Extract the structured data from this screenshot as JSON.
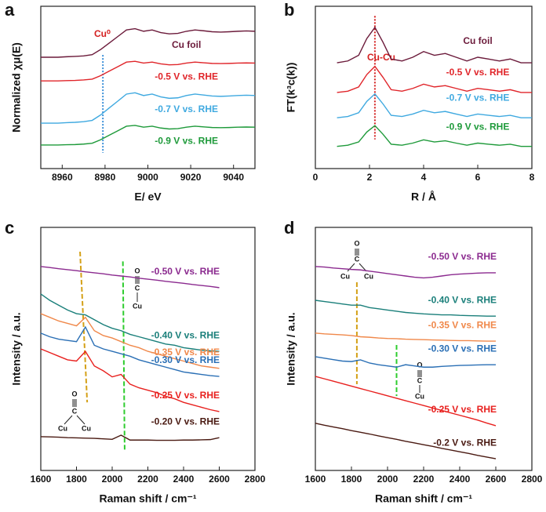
{
  "chart_data": [
    {
      "type": "line",
      "panel": "a",
      "xlabel": "E/ eV",
      "ylabel": "Normalized χμ(E)",
      "x": [
        8950,
        8954,
        8958,
        8962,
        8966,
        8970,
        8974,
        8978,
        8982,
        8986,
        8990,
        8994,
        8998,
        9002,
        9006,
        9010,
        9014,
        9018,
        9022,
        9026,
        9030,
        9034,
        9038,
        9042,
        9046,
        9050
      ],
      "xlim": [
        8950,
        9050
      ],
      "xticks": [
        8960,
        8980,
        9000,
        9020,
        9040
      ],
      "ylim": [
        0,
        10
      ],
      "series": [
        {
          "name": "Cu foil",
          "color": "#6b1a3a",
          "values": [
            6.86,
            6.86,
            6.86,
            6.89,
            6.91,
            6.94,
            7.02,
            7.34,
            7.74,
            8.14,
            8.54,
            8.62,
            8.46,
            8.54,
            8.38,
            8.3,
            8.33,
            8.46,
            8.54,
            8.49,
            8.43,
            8.41,
            8.43,
            8.46,
            8.48,
            8.46
          ]
        },
        {
          "name": "-0.5 V vs. RHE",
          "color": "#e0252a",
          "values": [
            5.4,
            5.4,
            5.4,
            5.42,
            5.43,
            5.46,
            5.51,
            5.73,
            6.01,
            6.28,
            6.56,
            6.61,
            6.5,
            6.56,
            6.45,
            6.39,
            6.41,
            6.5,
            6.56,
            6.52,
            6.48,
            6.47,
            6.48,
            6.5,
            6.51,
            6.5
          ]
        },
        {
          "name": "-0.7 V vs. RHE",
          "color": "#3fa9e0",
          "values": [
            2.8,
            2.8,
            2.8,
            2.83,
            2.85,
            2.89,
            2.97,
            3.31,
            3.74,
            4.16,
            4.59,
            4.67,
            4.5,
            4.59,
            4.42,
            4.33,
            4.36,
            4.5,
            4.59,
            4.53,
            4.47,
            4.45,
            4.47,
            4.5,
            4.52,
            4.5
          ]
        },
        {
          "name": "-0.9 V vs. RHE",
          "color": "#1e9a3a",
          "values": [
            1.45,
            1.45,
            1.45,
            1.47,
            1.48,
            1.51,
            1.56,
            1.78,
            2.06,
            2.33,
            2.61,
            2.66,
            2.55,
            2.61,
            2.5,
            2.44,
            2.46,
            2.55,
            2.61,
            2.57,
            2.53,
            2.52,
            2.53,
            2.55,
            2.56,
            2.55
          ]
        }
      ],
      "reference_lines": [
        {
          "x": [
            8979,
            8979
          ],
          "y": [
            7.0,
            0.97
          ],
          "color": "#3a8fd8",
          "style": "dotted"
        }
      ],
      "annotations": [
        "Cu⁰"
      ]
    },
    {
      "type": "line",
      "panel": "b",
      "xlabel": "R / Å",
      "ylabel": "FT(k³c(k))",
      "x": [
        0.8,
        1.2,
        1.6,
        1.9,
        2.2,
        2.5,
        2.8,
        3.2,
        3.6,
        4.0,
        4.4,
        4.8,
        5.2,
        5.6,
        6.0,
        6.4,
        6.8,
        7.2,
        7.6,
        8.0
      ],
      "xlim": [
        0,
        8
      ],
      "xticks": [
        0,
        2,
        4,
        6,
        8
      ],
      "ylim": [
        0,
        10
      ],
      "series": [
        {
          "name": "Cu foil",
          "color": "#6b1a3a",
          "values": [
            6.52,
            6.63,
            6.98,
            8.01,
            8.7,
            7.78,
            6.75,
            6.63,
            6.86,
            7.21,
            6.98,
            7.09,
            6.86,
            6.63,
            6.86,
            6.75,
            6.63,
            6.75,
            6.52,
            6.52
          ]
        },
        {
          "name": "-0.5 V vs. RHE",
          "color": "#e0252a",
          "values": [
            4.69,
            4.77,
            5.03,
            5.79,
            6.3,
            5.62,
            4.86,
            4.77,
            4.94,
            5.2,
            5.03,
            5.11,
            4.94,
            4.77,
            4.94,
            4.86,
            4.77,
            4.86,
            4.69,
            4.69
          ]
        },
        {
          "name": "-0.7 V vs. RHE",
          "color": "#3fa9e0",
          "values": [
            3.13,
            3.21,
            3.44,
            4.14,
            4.6,
            3.98,
            3.28,
            3.21,
            3.36,
            3.59,
            3.44,
            3.52,
            3.36,
            3.21,
            3.36,
            3.28,
            3.21,
            3.28,
            3.13,
            3.13
          ]
        },
        {
          "name": "-0.9 V vs. RHE",
          "color": "#1e9a3a",
          "values": [
            1.37,
            1.44,
            1.64,
            2.25,
            2.65,
            2.11,
            1.5,
            1.44,
            1.57,
            1.77,
            1.64,
            1.71,
            1.57,
            1.44,
            1.57,
            1.5,
            1.44,
            1.5,
            1.37,
            1.37
          ]
        }
      ],
      "reference_lines": [
        {
          "x": [
            2.2,
            2.2
          ],
          "y": [
            9.4,
            1.8
          ],
          "color": "#d42020",
          "style": "dotted"
        }
      ],
      "annotations": [
        "Cu-Cu"
      ]
    },
    {
      "type": "line",
      "panel": "c",
      "xlabel": "Raman shift / cm⁻¹",
      "ylabel": "Intensity / a.u.",
      "x": [
        1600,
        1650,
        1700,
        1750,
        1800,
        1850,
        1900,
        1950,
        2000,
        2050,
        2100,
        2150,
        2200,
        2250,
        2300,
        2350,
        2400,
        2450,
        2500,
        2550,
        2600
      ],
      "xlim": [
        1600,
        2800
      ],
      "xticks": [
        1600,
        1800,
        2000,
        2200,
        2400,
        2600,
        2800
      ],
      "ylim": [
        0,
        10
      ],
      "series": [
        {
          "name": "-0.50 V vs. RHE",
          "color": "#8b2a8f",
          "values": [
            8.39,
            8.35,
            8.3,
            8.26,
            8.22,
            8.17,
            8.13,
            8.09,
            8.04,
            8.0,
            7.96,
            7.91,
            7.87,
            7.83,
            7.78,
            7.74,
            7.7,
            7.65,
            7.61,
            7.57,
            7.52
          ]
        },
        {
          "name": "-0.40 V vs. RHE",
          "color": "#1a7f7a",
          "values": [
            7.26,
            7.0,
            6.8,
            6.6,
            6.45,
            6.4,
            6.2,
            6.0,
            5.85,
            5.75,
            5.6,
            5.5,
            5.4,
            5.3,
            5.2,
            5.15,
            5.05,
            5.0,
            4.95,
            4.92,
            4.9
          ]
        },
        {
          "name": "-0.35 V vs. RHE",
          "color": "#f0884a",
          "values": [
            6.45,
            6.3,
            6.15,
            6.05,
            5.95,
            6.3,
            5.75,
            5.55,
            5.45,
            5.3,
            5.15,
            5.05,
            4.9,
            4.8,
            4.7,
            4.6,
            4.5,
            4.4,
            4.3,
            4.25,
            4.2
          ]
        },
        {
          "name": "-0.30 V vs. RHE",
          "color": "#2a6fb5",
          "values": [
            5.65,
            5.5,
            5.4,
            5.35,
            5.3,
            5.9,
            5.15,
            5.0,
            4.9,
            4.8,
            4.7,
            4.55,
            4.45,
            4.35,
            4.25,
            4.15,
            4.05,
            4.0,
            3.95,
            3.9,
            3.87
          ]
        },
        {
          "name": "-0.25 V vs. RHE",
          "color": "#e8201e",
          "values": [
            5.0,
            4.85,
            4.7,
            4.55,
            4.5,
            4.9,
            4.3,
            4.1,
            3.85,
            3.95,
            3.55,
            3.4,
            3.3,
            3.2,
            3.05,
            2.95,
            2.8,
            2.7,
            2.6,
            2.5,
            2.42
          ]
        },
        {
          "name": "-0.20 V vs. RHE",
          "color": "#4a1a12",
          "values": [
            1.39,
            1.38,
            1.37,
            1.35,
            1.34,
            1.33,
            1.32,
            1.3,
            1.28,
            1.45,
            1.25,
            1.25,
            1.25,
            1.24,
            1.24,
            1.24,
            1.25,
            1.25,
            1.26,
            1.27,
            1.35
          ]
        }
      ],
      "reference_lines": [
        {
          "x": [
            1820,
            1860
          ],
          "y": [
            9.0,
            2.8
          ],
          "color": "#d4a017",
          "style": "dashed"
        },
        {
          "x": [
            2060,
            2070
          ],
          "y": [
            8.6,
            0.8
          ],
          "color": "#2ecc2e",
          "style": "dashed"
        }
      ],
      "structures": [
        {
          "labels": [
            "O",
            "C",
            "Cu",
            "Cu"
          ]
        },
        {
          "labels": [
            "O",
            "C",
            "Cu"
          ]
        }
      ]
    },
    {
      "type": "line",
      "panel": "d",
      "xlabel": "Raman shift / cm⁻¹",
      "ylabel": "Intensity / a.u.",
      "x": [
        1600,
        1650,
        1700,
        1750,
        1800,
        1850,
        1900,
        1950,
        2000,
        2050,
        2100,
        2150,
        2200,
        2250,
        2300,
        2350,
        2400,
        2450,
        2500,
        2550,
        2600
      ],
      "xlim": [
        1600,
        2800
      ],
      "xticks": [
        1600,
        1800,
        2000,
        2200,
        2400,
        2600,
        2800
      ],
      "ylim": [
        0,
        10
      ],
      "series": [
        {
          "name": "-0.50 V vs. RHE",
          "color": "#8b2a8f",
          "values": [
            8.39,
            8.37,
            8.33,
            8.3,
            8.27,
            8.25,
            8.2,
            8.15,
            8.1,
            8.05,
            8.0,
            7.95,
            7.92,
            7.95,
            8.0,
            8.05,
            8.08,
            8.1,
            8.12,
            8.13,
            8.13
          ]
        },
        {
          "name": "-0.40 V vs. RHE",
          "color": "#1a7f7a",
          "values": [
            7.0,
            6.95,
            6.9,
            6.85,
            6.8,
            6.8,
            6.7,
            6.65,
            6.6,
            6.55,
            6.5,
            6.47,
            6.44,
            6.42,
            6.4,
            6.4,
            6.38,
            6.37,
            6.36,
            6.35,
            6.35
          ]
        },
        {
          "name": "-0.35 V vs. RHE",
          "color": "#f0884a",
          "values": [
            5.65,
            5.62,
            5.6,
            5.58,
            5.55,
            5.5,
            5.48,
            5.45,
            5.43,
            5.42,
            5.4,
            5.39,
            5.38,
            5.37,
            5.36,
            5.35,
            5.34,
            5.34,
            5.33,
            5.32,
            5.32
          ]
        },
        {
          "name": "-0.30 V vs. RHE",
          "color": "#2a6fb5",
          "values": [
            4.68,
            4.62,
            4.56,
            4.5,
            4.48,
            4.55,
            4.42,
            4.35,
            4.3,
            4.25,
            4.35,
            4.3,
            4.25,
            4.25,
            4.28,
            4.3,
            4.32,
            4.33,
            4.34,
            4.35,
            4.35
          ]
        },
        {
          "name": "-0.25 V vs. RHE",
          "color": "#e8201e",
          "values": [
            3.87,
            3.77,
            3.67,
            3.57,
            3.47,
            3.37,
            3.27,
            3.17,
            3.07,
            2.97,
            2.87,
            2.77,
            2.67,
            2.57,
            2.47,
            2.37,
            2.27,
            2.17,
            2.07,
            1.95,
            1.84
          ]
        },
        {
          "name": "-0.2 V vs. RHE",
          "color": "#4a1a12",
          "values": [
            1.94,
            1.86,
            1.79,
            1.72,
            1.64,
            1.57,
            1.5,
            1.42,
            1.35,
            1.28,
            1.2,
            1.13,
            1.06,
            0.99,
            0.91,
            0.84,
            0.77,
            0.7,
            0.62,
            0.55,
            0.48
          ]
        }
      ],
      "reference_lines": [
        {
          "x": [
            1830,
            1830
          ],
          "y": [
            7.74,
            3.55
          ],
          "color": "#d4a017",
          "style": "dashed"
        },
        {
          "x": [
            2050,
            2050
          ],
          "y": [
            5.16,
            3.06
          ],
          "color": "#2ecc2e",
          "style": "dashed"
        }
      ],
      "structures": [
        {
          "labels": [
            "O",
            "C",
            "Cu",
            "Cu"
          ]
        },
        {
          "labels": [
            "O",
            "C",
            "Cu"
          ]
        }
      ]
    }
  ]
}
